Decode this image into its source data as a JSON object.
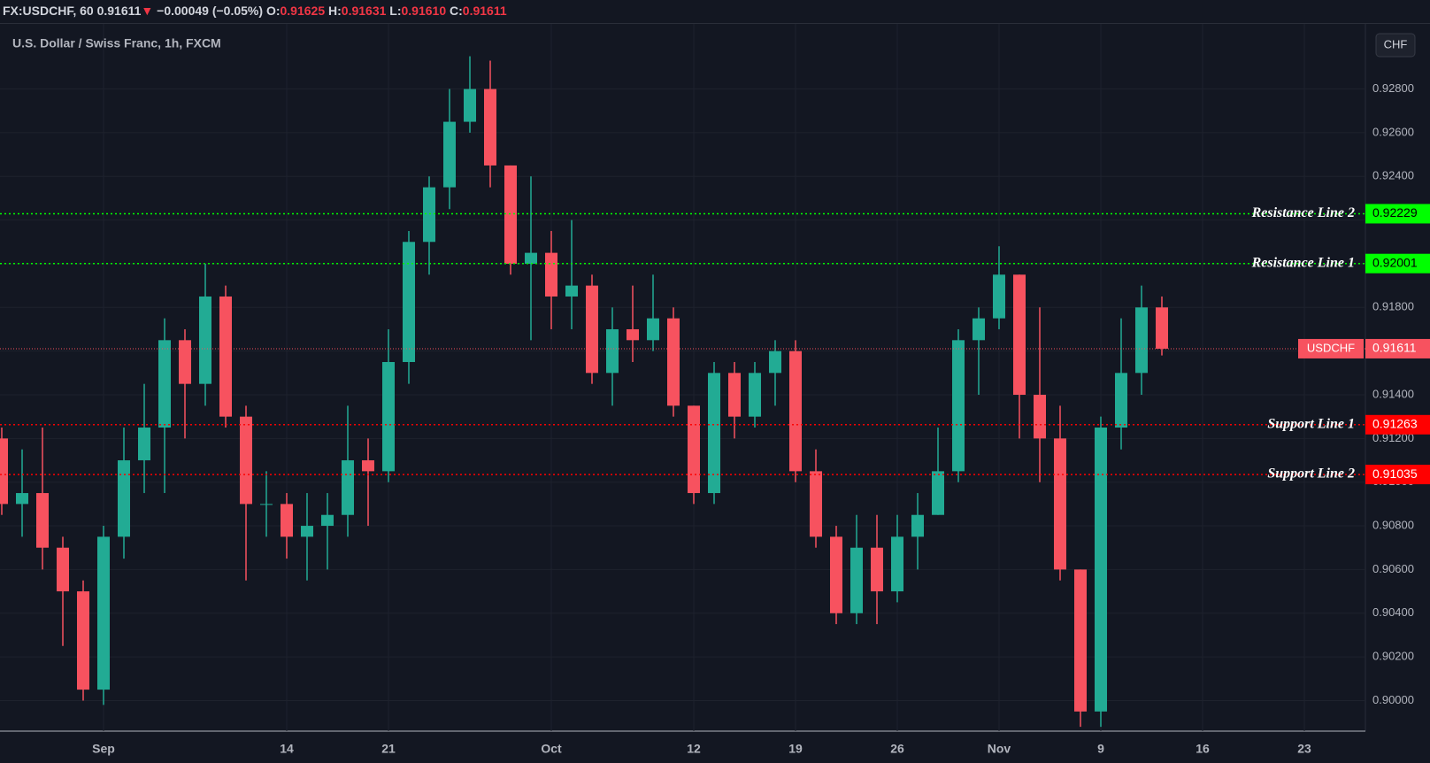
{
  "header": {
    "symbol": "FX:USDCHF, 60",
    "last": "0.91611",
    "change": "−0.00049 (−0.05%)",
    "ohlc": [
      {
        "label": "O:",
        "value": "0.91625"
      },
      {
        "label": "H:",
        "value": "0.91631"
      },
      {
        "label": "L:",
        "value": "0.91610"
      },
      {
        "label": "C:",
        "value": "0.91611"
      }
    ]
  },
  "chart_data": {
    "type": "candlestick",
    "title": "U.S. Dollar / Swiss Franc, 1h, FXCM",
    "currency": "CHF",
    "up_color": "#22ab94",
    "down_color": "#f7525f",
    "grid": true,
    "categories": [
      null,
      null,
      null,
      null,
      null,
      "Sep",
      null,
      null,
      null,
      null,
      null,
      null,
      null,
      null,
      "14",
      null,
      null,
      null,
      null,
      "21",
      null,
      null,
      null,
      null,
      null,
      null,
      null,
      "Oct",
      null,
      null,
      null,
      null,
      null,
      null,
      "12",
      null,
      null,
      null,
      null,
      "19",
      null,
      null,
      null,
      null,
      "26",
      null,
      null,
      null,
      null,
      "Nov",
      null,
      null,
      null,
      null,
      "9",
      null,
      null,
      null,
      null,
      "16",
      null,
      null,
      null,
      null,
      "23",
      null,
      null,
      null
    ],
    "open": [
      0.912,
      0.909,
      0.9095,
      0.907,
      0.905,
      0.9005,
      0.9075,
      0.911,
      0.9125,
      0.9165,
      0.9145,
      0.9185,
      0.913,
      0.909,
      0.909,
      0.9075,
      0.908,
      0.9085,
      0.911,
      0.9105,
      0.9155,
      0.921,
      0.9235,
      0.9265,
      0.928,
      0.9245,
      0.92,
      0.9205,
      0.9185,
      0.919,
      0.915,
      0.917,
      0.9165,
      0.9175,
      0.9135,
      0.9095,
      0.915,
      0.913,
      0.915,
      0.916,
      0.9105,
      0.9075,
      0.904,
      0.907,
      0.905,
      0.9075,
      0.9085,
      0.9105,
      0.9165,
      0.9175,
      0.9195,
      0.914,
      0.912,
      0.906,
      0.8995,
      0.9125,
      0.915,
      0.918,
      null,
      null,
      null,
      null,
      null,
      null,
      null,
      null,
      null,
      null
    ],
    "high": [
      0.9125,
      0.9115,
      0.9125,
      0.9075,
      0.9055,
      0.908,
      0.9125,
      0.9145,
      0.9175,
      0.917,
      0.92,
      0.919,
      0.9135,
      0.9105,
      0.9095,
      0.9095,
      0.9095,
      0.9135,
      0.912,
      0.917,
      0.9215,
      0.924,
      0.928,
      0.9295,
      0.9293,
      0.9245,
      0.924,
      0.9215,
      0.922,
      0.9195,
      0.918,
      0.919,
      0.9195,
      0.918,
      0.9135,
      0.9155,
      0.9155,
      0.9155,
      0.9165,
      0.9165,
      0.9115,
      0.908,
      0.9085,
      0.9085,
      0.9085,
      0.9095,
      0.9125,
      0.917,
      0.918,
      0.9208,
      0.9195,
      0.918,
      0.9135,
      0.906,
      0.913,
      0.9175,
      0.919,
      0.9185,
      null,
      null,
      null,
      null,
      null,
      null,
      null,
      null,
      null,
      null
    ],
    "low": [
      0.9085,
      0.9075,
      0.906,
      0.9025,
      0.9,
      0.8998,
      0.9065,
      0.9095,
      0.9095,
      0.912,
      0.9135,
      0.9125,
      0.9055,
      0.9075,
      0.9065,
      0.9055,
      0.906,
      0.9075,
      0.908,
      0.91,
      0.9145,
      0.9195,
      0.9225,
      0.926,
      0.9235,
      0.9195,
      0.9165,
      0.917,
      0.917,
      0.9145,
      0.9135,
      0.9155,
      0.916,
      0.913,
      0.909,
      0.909,
      0.912,
      0.9125,
      0.9135,
      0.91,
      0.907,
      0.9035,
      0.9035,
      0.9035,
      0.9045,
      0.906,
      0.9085,
      0.91,
      0.914,
      0.917,
      0.912,
      0.91,
      0.9055,
      0.8988,
      0.8988,
      0.9115,
      0.914,
      0.9158,
      null,
      null,
      null,
      null,
      null,
      null,
      null,
      null,
      null,
      null
    ],
    "close": [
      0.909,
      0.9095,
      0.907,
      0.905,
      0.9005,
      0.9075,
      0.911,
      0.9125,
      0.9165,
      0.9145,
      0.9185,
      0.913,
      0.909,
      0.909,
      0.9075,
      0.908,
      0.9085,
      0.911,
      0.9105,
      0.9155,
      0.921,
      0.9235,
      0.9265,
      0.928,
      0.9245,
      0.92,
      0.9205,
      0.9185,
      0.919,
      0.915,
      0.917,
      0.9165,
      0.9175,
      0.9135,
      0.9095,
      0.915,
      0.913,
      0.915,
      0.916,
      0.9105,
      0.9075,
      0.904,
      0.907,
      0.905,
      0.9075,
      0.9085,
      0.9105,
      0.9165,
      0.9175,
      0.9195,
      0.914,
      0.912,
      0.906,
      0.8995,
      0.9125,
      0.915,
      0.918,
      0.91611,
      null,
      null,
      null,
      null,
      null,
      null,
      null,
      null,
      null,
      null
    ],
    "ylim": [
      0.8986,
      0.9309
    ],
    "yticks": [
      {
        "value": 0.9,
        "label": "0.90000"
      },
      {
        "value": 0.902,
        "label": "0.90200"
      },
      {
        "value": 0.904,
        "label": "0.90400"
      },
      {
        "value": 0.906,
        "label": "0.90600"
      },
      {
        "value": 0.908,
        "label": "0.90800"
      },
      {
        "value": 0.91,
        "label": "0.91000"
      },
      {
        "value": 0.912,
        "label": "0.91200"
      },
      {
        "value": 0.914,
        "label": "0.91400"
      },
      {
        "value": 0.916,
        "label": "0.91600"
      },
      {
        "value": 0.918,
        "label": "0.91800"
      },
      {
        "value": 0.92,
        "label": "0.92000"
      },
      {
        "value": 0.922,
        "label": "0.92200"
      },
      {
        "value": 0.924,
        "label": "0.92400"
      },
      {
        "value": 0.926,
        "label": "0.92600"
      },
      {
        "value": 0.928,
        "label": "0.92800"
      }
    ],
    "levels": [
      {
        "name": "Resistance Line 2",
        "value": 0.92229,
        "color": "#00ff00"
      },
      {
        "name": "Resistance Line 1",
        "value": 0.92001,
        "color": "#00ff00"
      },
      {
        "name": "Support Line 1",
        "value": 0.91263,
        "color": "#ff0000"
      },
      {
        "name": "Support Line 2",
        "value": 0.91035,
        "color": "#ff0000"
      }
    ],
    "last_price": {
      "name": "USDCHF",
      "value": 0.91611,
      "color": "#f7525f"
    }
  }
}
